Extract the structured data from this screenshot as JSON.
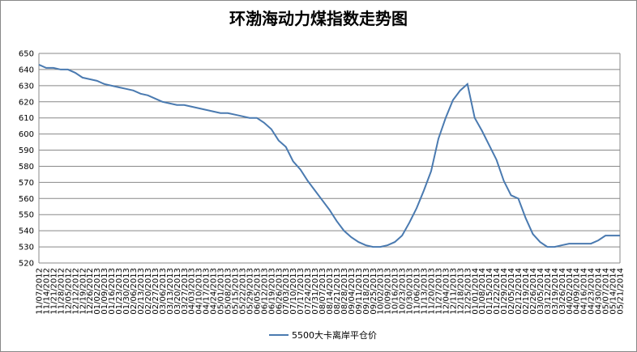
{
  "chart_data": {
    "type": "line",
    "title": "环渤海动力煤指数走势图",
    "categories": [
      "11/07/2012",
      "11/14/2012",
      "11/21/2012",
      "11/28/2012",
      "12/05/2012",
      "12/12/2012",
      "12/19/2012",
      "12/26/2012",
      "01/02/2013",
      "01/09/2013",
      "01/16/2013",
      "01/23/2013",
      "01/30/2013",
      "02/06/2013",
      "02/13/2013",
      "02/20/2013",
      "02/27/2013",
      "03/06/2013",
      "03/13/2013",
      "03/20/2013",
      "03/27/2013",
      "04/03/2013",
      "04/10/2013",
      "04/17/2013",
      "04/24/2013",
      "05/01/2013",
      "05/08/2013",
      "05/15/2013",
      "05/22/2013",
      "05/29/2013",
      "06/05/2013",
      "06/12/2013",
      "06/19/2013",
      "06/26/2013",
      "07/03/2013",
      "07/10/2013",
      "07/17/2013",
      "07/24/2013",
      "07/31/2013",
      "08/07/2013",
      "08/14/2013",
      "08/21/2013",
      "08/28/2013",
      "09/04/2013",
      "09/11/2013",
      "09/18/2013",
      "09/25/2013",
      "10/02/2013",
      "10/09/2013",
      "10/16/2013",
      "10/23/2013",
      "10/30/2013",
      "11/06/2013",
      "11/13/2013",
      "11/20/2013",
      "11/27/2013",
      "12/04/2013",
      "12/11/2013",
      "12/18/2013",
      "12/25/2013",
      "01/01/2014",
      "01/08/2014",
      "01/15/2014",
      "01/22/2014",
      "01/29/2014",
      "02/05/2014",
      "02/12/2014",
      "02/19/2014",
      "02/26/2014",
      "03/05/2014",
      "03/12/2014",
      "03/19/2014",
      "03/26/2014",
      "04/02/2014",
      "04/09/2014",
      "04/16/2014",
      "04/23/2014",
      "04/30/2014",
      "05/07/2014",
      "05/14/2014",
      "05/21/2014"
    ],
    "series": [
      {
        "name": "5500大卡离岸平仓价",
        "color": "#4a7ab0",
        "values": [
          643,
          641,
          641,
          640,
          640,
          638,
          635,
          634,
          633,
          631,
          630,
          629,
          628,
          627,
          625,
          624,
          622,
          620,
          619,
          618,
          618,
          617,
          616,
          615,
          614,
          613,
          613,
          612,
          611,
          610,
          610,
          607,
          603,
          596,
          592,
          583,
          578,
          571,
          565,
          559,
          553,
          546,
          540,
          536,
          533,
          531,
          530,
          530,
          531,
          533,
          537,
          545,
          554,
          565,
          577,
          597,
          610,
          621,
          627,
          631,
          610,
          602,
          593,
          584,
          571,
          562,
          560,
          548,
          538,
          533,
          530,
          530,
          531,
          532,
          532,
          532,
          532,
          534,
          537,
          537,
          537
        ]
      }
    ],
    "ylim": [
      520,
      650
    ],
    "yticks": [
      520,
      530,
      540,
      550,
      560,
      570,
      580,
      590,
      600,
      610,
      620,
      630,
      640,
      650
    ],
    "grid": true,
    "legend": "bottom"
  }
}
